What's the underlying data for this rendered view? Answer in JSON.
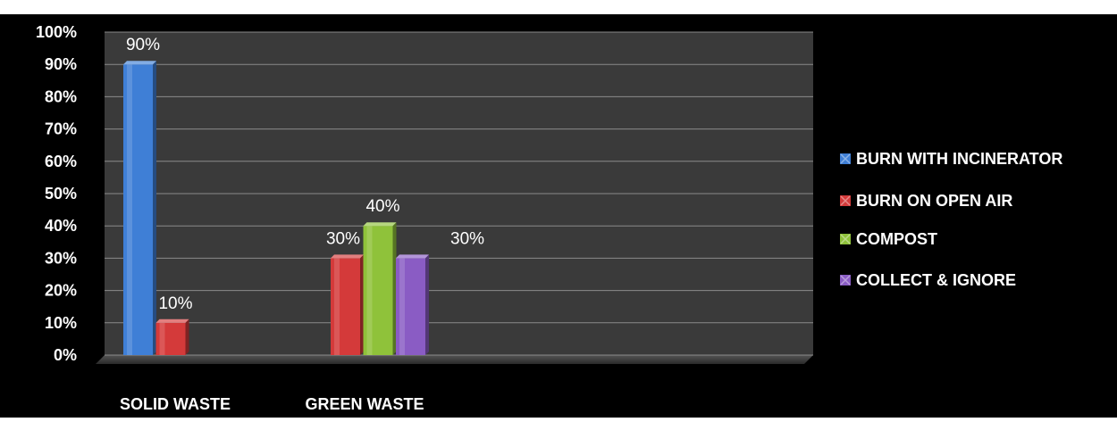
{
  "caption_fragment": "",
  "chart_data": {
    "type": "bar",
    "title": "",
    "xlabel": "",
    "ylabel": "",
    "ylim": [
      0,
      100
    ],
    "yticks": [
      "0%",
      "10%",
      "20%",
      "30%",
      "40%",
      "50%",
      "60%",
      "70%",
      "80%",
      "90%",
      "100%"
    ],
    "categories": [
      "SOLID WASTE",
      "GREEN WASTE"
    ],
    "series": [
      {
        "name": "BURN WITH INCINERATOR",
        "color": "#3f7fd6",
        "values": [
          90,
          null
        ],
        "labels": [
          "90%",
          null
        ]
      },
      {
        "name": "BURN ON OPEN AIR",
        "color": "#d43a3a",
        "values": [
          10,
          30
        ],
        "labels": [
          "10%",
          "30%"
        ]
      },
      {
        "name": "COMPOST",
        "color": "#8fc23a",
        "values": [
          null,
          40
        ],
        "labels": [
          null,
          "40%"
        ]
      },
      {
        "name": "COLLECT & IGNORE",
        "color": "#8a5cc4",
        "values": [
          null,
          30
        ],
        "labels": [
          null,
          "30%"
        ]
      }
    ],
    "grid": true,
    "legend_position": "right",
    "background": "#000000",
    "plot_background": "#3a3a3a"
  }
}
